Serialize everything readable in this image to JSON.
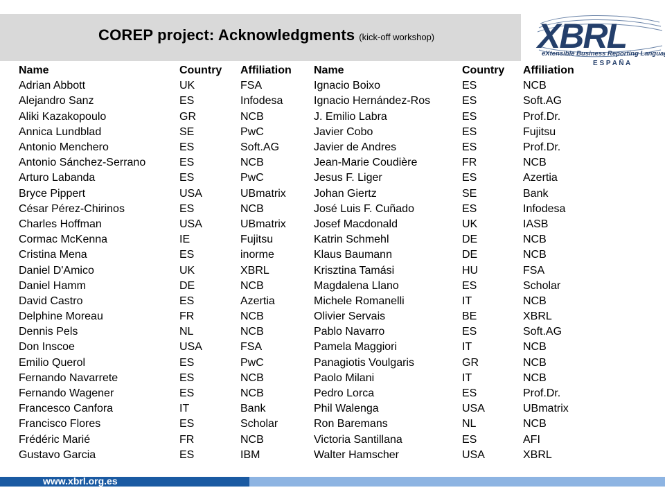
{
  "title": {
    "main": "COREP project: Acknowledgments",
    "sub": "(kick-off workshop)"
  },
  "logo": {
    "word": "XBRL",
    "tagline": "eXtensible Business Reporting Language",
    "region": "E S P A Ñ A"
  },
  "footer": {
    "url": "www.xbrl.org.es"
  },
  "headers": [
    "Name",
    "Country",
    "Affiliation",
    "Name",
    "Country",
    "Affiliation"
  ],
  "rows": [
    [
      "Adrian Abbott",
      "UK",
      "FSA",
      "Ignacio Boixo",
      "ES",
      "NCB"
    ],
    [
      "Alejandro Sanz",
      "ES",
      "Infodesa",
      "Ignacio Hernández-Ros",
      "ES",
      "Soft.AG"
    ],
    [
      "Aliki Kazakopoulo",
      "GR",
      "NCB",
      "J. Emilio Labra",
      "ES",
      "Prof.Dr."
    ],
    [
      "Annica Lundblad",
      "SE",
      "PwC",
      "Javier Cobo",
      "ES",
      "Fujitsu"
    ],
    [
      "Antonio Menchero",
      "ES",
      "Soft.AG",
      "Javier de Andres",
      "ES",
      "Prof.Dr."
    ],
    [
      "Antonio Sánchez-Serrano",
      "ES",
      "NCB",
      "Jean-Marie Coudière",
      "FR",
      "NCB"
    ],
    [
      "Arturo Labanda",
      "ES",
      "PwC",
      "Jesus F. Liger",
      "ES",
      "Azertia"
    ],
    [
      "Bryce Pippert",
      "USA",
      "UBmatrix",
      "Johan Giertz",
      "SE",
      "Bank"
    ],
    [
      "César Pérez-Chirinos",
      "ES",
      "NCB",
      "José Luis F. Cuñado",
      "ES",
      "Infodesa"
    ],
    [
      "Charles Hoffman",
      "USA",
      "UBmatrix",
      "Josef Macdonald",
      "UK",
      "IASB"
    ],
    [
      "Cormac McKenna",
      "IE",
      "Fujitsu",
      "Katrin Schmehl",
      "DE",
      "NCB"
    ],
    [
      "Cristina Mena",
      "ES",
      "inorme",
      "Klaus Baumann",
      "DE",
      "NCB"
    ],
    [
      "Daniel D'Amico",
      "UK",
      "XBRL",
      "Krisztina Tamási",
      "HU",
      "FSA"
    ],
    [
      "Daniel Hamm",
      "DE",
      "NCB",
      "Magdalena Llano",
      "ES",
      "Scholar"
    ],
    [
      "David Castro",
      "ES",
      "Azertia",
      "Michele Romanelli",
      "IT",
      "NCB"
    ],
    [
      "Delphine Moreau",
      "FR",
      "NCB",
      "Olivier Servais",
      "BE",
      "XBRL"
    ],
    [
      "Dennis Pels",
      "NL",
      "NCB",
      "Pablo Navarro",
      "ES",
      "Soft.AG"
    ],
    [
      "Don Inscoe",
      "USA",
      "FSA",
      "Pamela Maggiori",
      "IT",
      "NCB"
    ],
    [
      "Emilio Querol",
      "ES",
      "PwC",
      "Panagiotis Voulgaris",
      "GR",
      "NCB"
    ],
    [
      "Fernando Navarrete",
      "ES",
      "NCB",
      "Paolo Milani",
      "IT",
      "NCB"
    ],
    [
      "Fernando Wagener",
      "ES",
      "NCB",
      "Pedro Lorca",
      "ES",
      "Prof.Dr."
    ],
    [
      "Francesco Canfora",
      "IT",
      "Bank",
      "Phil Walenga",
      "USA",
      "UBmatrix"
    ],
    [
      "Francisco Flores",
      "ES",
      "Scholar",
      "Ron Baremans",
      "NL",
      "NCB"
    ],
    [
      "Frédéric Marié",
      "FR",
      "NCB",
      "Victoria Santillana",
      "ES",
      "AFI"
    ],
    [
      "Gustavo Garcia",
      "ES",
      "IBM",
      "Walter Hamscher",
      "USA",
      "XBRL"
    ]
  ]
}
